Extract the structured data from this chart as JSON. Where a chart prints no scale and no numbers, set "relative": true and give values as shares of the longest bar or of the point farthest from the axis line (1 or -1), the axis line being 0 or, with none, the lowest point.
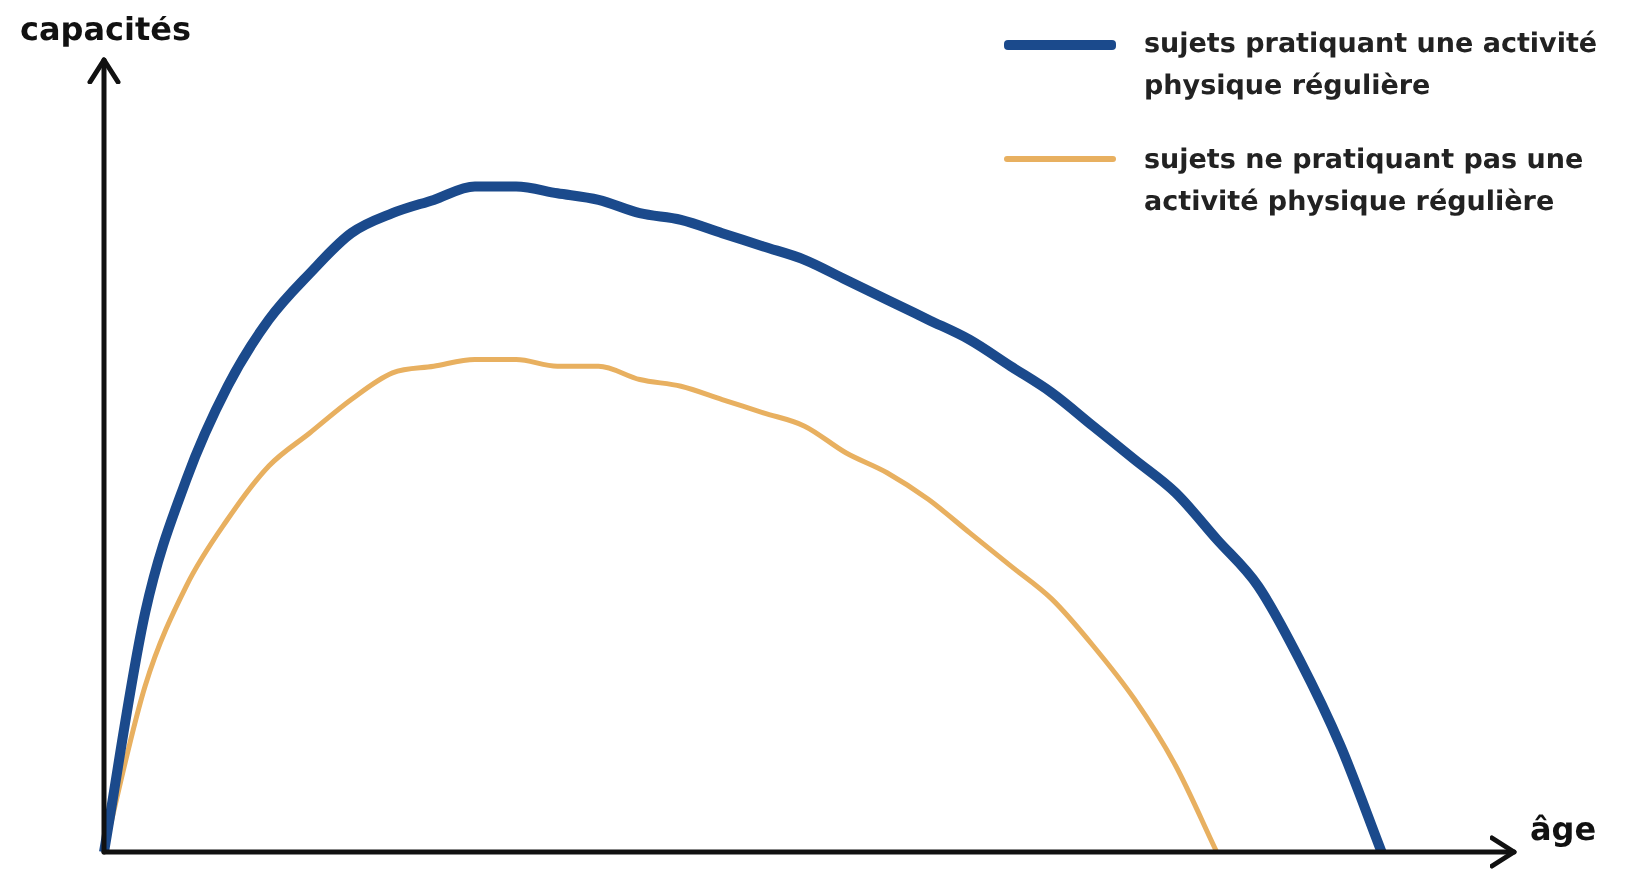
{
  "chart_data": {
    "type": "line",
    "relative": true,
    "xlabel": "âge",
    "ylabel": "capacités",
    "legend": "top right",
    "marker": "none",
    "line_style": "solid",
    "categories": [
      null,
      null,
      null,
      null,
      null,
      null,
      null,
      null,
      null,
      null,
      null,
      null,
      null,
      null,
      null,
      null,
      null,
      null,
      null,
      null,
      null,
      null,
      null,
      null,
      null,
      null,
      null,
      null,
      null,
      null,
      null,
      null,
      null,
      null
    ],
    "series": [
      {
        "name": "sujets pratiquant une activité physique régulière",
        "color": "#1b4a8c",
        "values": [
          0,
          0.36,
          0.56,
          0.7,
          0.8,
          0.87,
          0.93,
          0.96,
          0.98,
          1,
          1,
          0.99,
          0.98,
          0.96,
          0.95,
          0.93,
          0.91,
          0.89,
          0.86,
          0.83,
          0.8,
          0.77,
          0.73,
          0.69,
          0.64,
          0.59,
          0.54,
          0.47,
          0.4,
          0.29,
          0.16,
          0,
          null,
          null
        ]
      },
      {
        "name": "sujets ne pratiquant pas une activité physique régulière",
        "color": "#e8b060",
        "values": [
          0,
          0.25,
          0.4,
          0.5,
          0.58,
          0.63,
          0.68,
          0.72,
          0.73,
          0.74,
          0.74,
          0.73,
          0.73,
          0.71,
          0.7,
          0.68,
          0.66,
          0.64,
          0.6,
          0.57,
          0.53,
          0.48,
          0.43,
          0.38,
          0.31,
          0.23,
          0.13,
          0,
          null,
          null,
          null,
          null,
          null,
          null
        ]
      }
    ]
  }
}
